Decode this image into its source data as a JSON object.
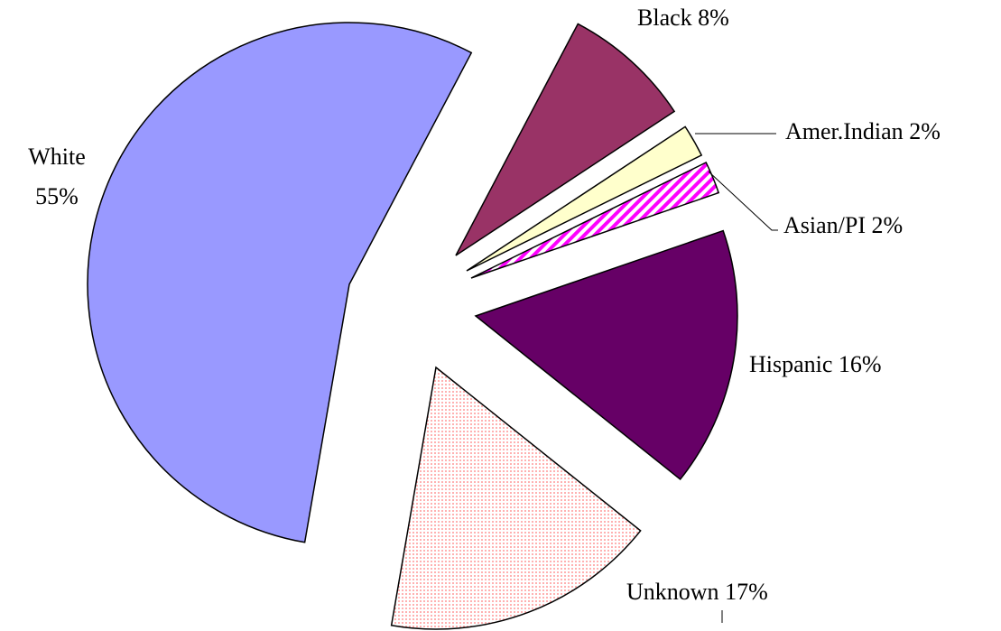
{
  "chart_data": {
    "type": "pie",
    "categories": [
      "Black",
      "Amer.Indian",
      "Asian/PI",
      "Hispanic",
      "Unknown",
      "White"
    ],
    "values": [
      8,
      2,
      2,
      16,
      17,
      55
    ],
    "value_labels": [
      "8%",
      "2%",
      "2%",
      "16%",
      "17%",
      "55%"
    ],
    "colors": [
      "#993366",
      "#ffffcc",
      "#ff00ff",
      "#660066",
      "#ff9999",
      "#9999ff"
    ]
  }
}
